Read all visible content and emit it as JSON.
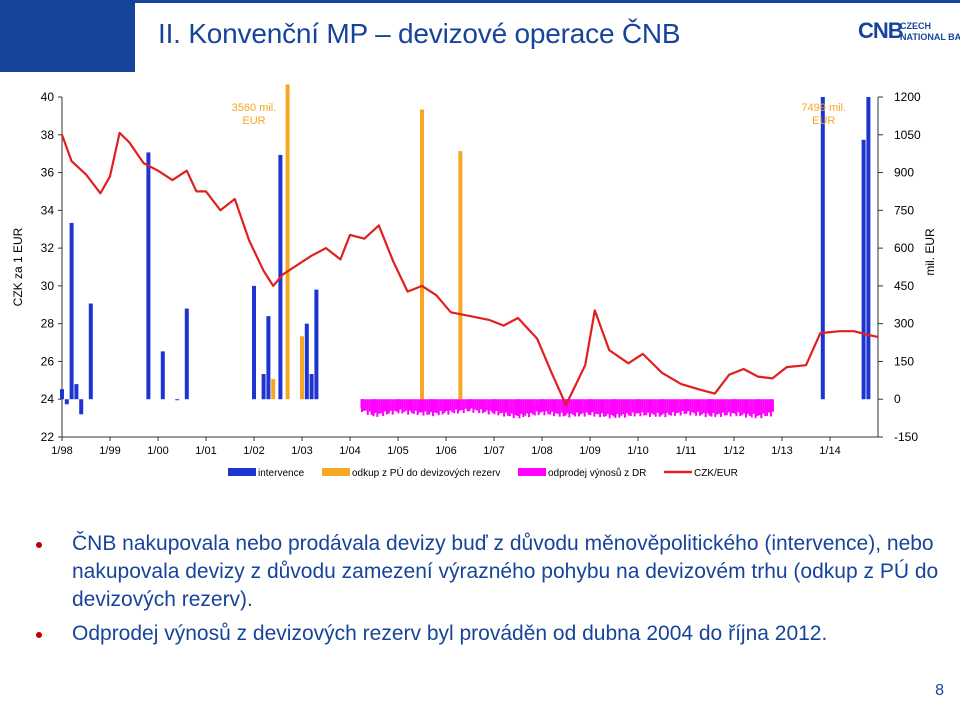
{
  "slide": {
    "title": "II. Konvenční MP – devizové operace ČNB",
    "logo_mark": "CNB",
    "logo_name": "CZECH\nNATIONAL BANK",
    "page_number": "8",
    "colors": {
      "primary": "#17449b",
      "bullet": "#c00000"
    }
  },
  "bullets": [
    "ČNB nakupovala nebo prodávala devizy buď z důvodu měnověpolitického (intervence), nebo nakupovala devizy  z důvodu zamezení výrazného pohybu na devizovém trhu (odkup z PÚ do devizových rezerv).",
    "Odprodej výnosů z devizových rezerv byl prováděn od dubna 2004 do října 2012."
  ],
  "chart_data": {
    "type": "bar",
    "categories": [
      "1/98",
      "1/99",
      "1/00",
      "1/01",
      "1/02",
      "1/03",
      "1/04",
      "1/05",
      "1/06",
      "1/07",
      "1/08",
      "1/09",
      "1/10",
      "1/11",
      "1/12",
      "1/13",
      "1/14"
    ],
    "ylabel_left": "CZK za 1 EUR",
    "ylabel_right": "mil. EUR",
    "ylim_left": [
      22,
      40
    ],
    "yticks_left": [
      "22",
      "24",
      "26",
      "28",
      "30",
      "32",
      "34",
      "36",
      "38",
      "40"
    ],
    "ylim_right": [
      -150,
      1200
    ],
    "yticks_right": [
      "-150",
      "0",
      "150",
      "300",
      "450",
      "600",
      "750",
      "900",
      "1050",
      "1200"
    ],
    "annotations": [
      {
        "text": "3560 mil. EUR",
        "x": 2002.0,
        "color": "#f5a623"
      },
      {
        "text": "7499 mil. EUR",
        "x": 2013.87,
        "color": "#f5a623"
      }
    ],
    "legend": [
      "intervence",
      "odkup z PÚ do devizových rezerv",
      "odprodej výnosů z DR",
      "CZK/EUR"
    ],
    "legend_position": "bottom",
    "series": [
      {
        "name": "intervence",
        "color": "#1e34d0",
        "points": [
          [
            1998.1,
            -20
          ],
          [
            1998.2,
            700
          ],
          [
            1998.3,
            60
          ],
          [
            1998.4,
            -60
          ],
          [
            1998.6,
            380
          ],
          [
            1999.8,
            980
          ],
          [
            2000.1,
            190
          ],
          [
            2000.4,
            -2
          ],
          [
            2000.6,
            360
          ],
          [
            2002.0,
            450
          ],
          [
            2002.2,
            100
          ],
          [
            2002.3,
            330
          ],
          [
            2002.55,
            970
          ],
          [
            2003.1,
            300
          ],
          [
            2003.2,
            100
          ],
          [
            2003.3,
            435
          ],
          [
            1998.0,
            40
          ],
          [
            2013.85,
            1200
          ],
          [
            2014.8,
            1200
          ],
          [
            2014.7,
            1030
          ]
        ]
      },
      {
        "name": "odkup z PÚ do devizových rezerv",
        "color": "#f5a623",
        "points": [
          [
            2002.4,
            80
          ],
          [
            2002.7,
            1250
          ],
          [
            2003.0,
            250
          ],
          [
            2005.5,
            1150
          ],
          [
            2006.3,
            985
          ]
        ]
      },
      {
        "name": "odprodej výnosů z DR",
        "color": "#ff00ff",
        "points": [
          [
            2004.25,
            -35
          ],
          [
            2004.5,
            -55
          ],
          [
            2005.0,
            -40
          ],
          [
            2005.7,
            -50
          ],
          [
            2006.5,
            -35
          ],
          [
            2007.0,
            -45
          ],
          [
            2007.5,
            -60
          ],
          [
            2008.0,
            -45
          ],
          [
            2008.5,
            -55
          ],
          [
            2009.0,
            -50
          ],
          [
            2009.5,
            -60
          ],
          [
            2010.0,
            -50
          ],
          [
            2010.5,
            -55
          ],
          [
            2011.0,
            -45
          ],
          [
            2011.5,
            -55
          ],
          [
            2012.0,
            -50
          ],
          [
            2012.5,
            -60
          ],
          [
            2012.8,
            -50
          ]
        ]
      },
      {
        "name": "CZK/EUR",
        "color": "#e0201e",
        "points": [
          [
            1998.0,
            38.0
          ],
          [
            1998.2,
            36.6
          ],
          [
            1998.5,
            35.9
          ],
          [
            1998.8,
            34.9
          ],
          [
            1999.0,
            35.8
          ],
          [
            1999.2,
            38.1
          ],
          [
            1999.4,
            37.6
          ],
          [
            1999.7,
            36.5
          ],
          [
            2000.0,
            36.1
          ],
          [
            2000.3,
            35.6
          ],
          [
            2000.6,
            36.1
          ],
          [
            2000.8,
            35.0
          ],
          [
            2001.0,
            35.0
          ],
          [
            2001.3,
            34.0
          ],
          [
            2001.6,
            34.6
          ],
          [
            2001.9,
            32.4
          ],
          [
            2002.2,
            30.8
          ],
          [
            2002.4,
            30.0
          ],
          [
            2002.6,
            30.6
          ],
          [
            2002.9,
            31.1
          ],
          [
            2003.2,
            31.6
          ],
          [
            2003.5,
            32.0
          ],
          [
            2003.8,
            31.4
          ],
          [
            2004.0,
            32.7
          ],
          [
            2004.3,
            32.5
          ],
          [
            2004.6,
            33.2
          ],
          [
            2004.9,
            31.3
          ],
          [
            2005.2,
            29.7
          ],
          [
            2005.5,
            30.0
          ],
          [
            2005.8,
            29.5
          ],
          [
            2006.1,
            28.6
          ],
          [
            2006.5,
            28.4
          ],
          [
            2006.9,
            28.2
          ],
          [
            2007.2,
            27.9
          ],
          [
            2007.5,
            28.3
          ],
          [
            2007.9,
            27.2
          ],
          [
            2008.2,
            25.4
          ],
          [
            2008.5,
            23.7
          ],
          [
            2008.9,
            25.8
          ],
          [
            2009.1,
            28.7
          ],
          [
            2009.4,
            26.6
          ],
          [
            2009.8,
            25.9
          ],
          [
            2010.1,
            26.4
          ],
          [
            2010.5,
            25.4
          ],
          [
            2010.9,
            24.8
          ],
          [
            2011.3,
            24.5
          ],
          [
            2011.6,
            24.3
          ],
          [
            2011.9,
            25.3
          ],
          [
            2012.2,
            25.6
          ],
          [
            2012.5,
            25.2
          ],
          [
            2012.8,
            25.1
          ],
          [
            2013.1,
            25.7
          ],
          [
            2013.5,
            25.8
          ],
          [
            2013.8,
            27.5
          ],
          [
            2014.2,
            27.6
          ],
          [
            2014.5,
            27.6
          ],
          [
            2014.8,
            27.4
          ],
          [
            2015.0,
            27.3
          ]
        ]
      }
    ]
  }
}
